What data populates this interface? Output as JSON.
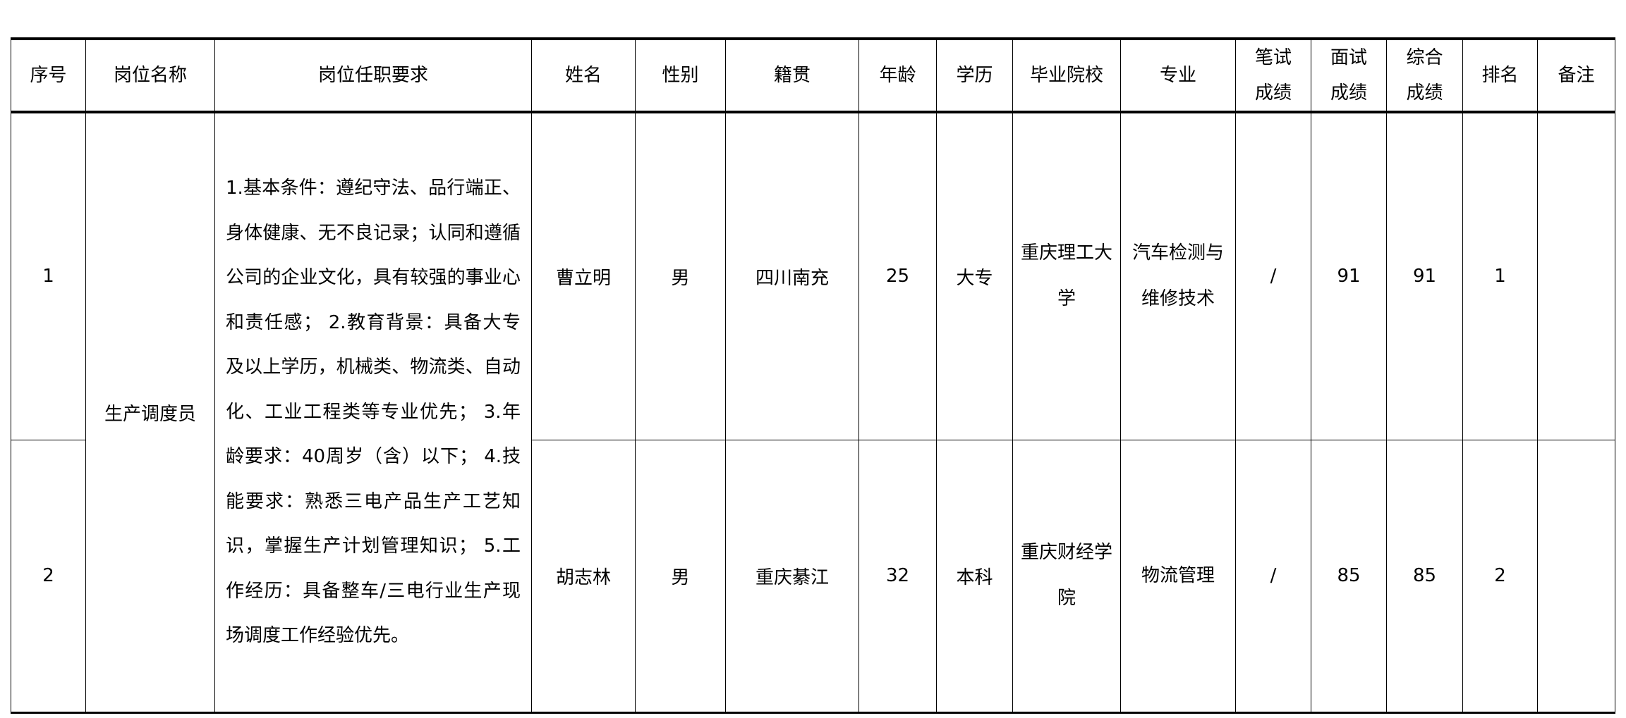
{
  "headers": [
    "序号",
    "岗位名称",
    "岗位任职要求",
    "姓名",
    "性别",
    "籍贯",
    "年龄",
    "学历",
    "毕业院校",
    "专业",
    "笔试成绩",
    "面试成绩",
    "综合成绩",
    "排名",
    "备注"
  ],
  "header_lines": {
    "written": [
      "笔试",
      "成绩"
    ],
    "interview": [
      "面试",
      "成绩"
    ],
    "total": [
      "综合",
      "成绩"
    ]
  },
  "position": "生产调度员",
  "requirements": "1.基本条件：遵纪守法、品行端正、身体健康、无不良记录；认同和遵循公司的企业文化，具有较强的事业心和责任感； 2.教育背景：具备大专及以上学历，机械类、物流类、自动化、工业工程类等专业优先； 3.年龄要求：40周岁（含）以下； 4.技能要求：熟悉三电产品生产工艺知识，掌握生产计划管理知识； 5.工作经历：具备整车/三电行业生产现场调度工作经验优先。",
  "rows": [
    {
      "no": "1",
      "name": "曹立明",
      "gender": "男",
      "origin": "四川南充",
      "age": "25",
      "edu": "大专",
      "school": "重庆理工大学",
      "major": "汽车检测与维修技术",
      "written": "/",
      "interview": "91",
      "total": "91",
      "rank": "1",
      "note": ""
    },
    {
      "no": "2",
      "name": "胡志林",
      "gender": "男",
      "origin": "重庆綦江",
      "age": "32",
      "edu": "本科",
      "school": "重庆财经学院",
      "major": "物流管理",
      "written": "/",
      "interview": "85",
      "total": "85",
      "rank": "2",
      "note": ""
    }
  ]
}
